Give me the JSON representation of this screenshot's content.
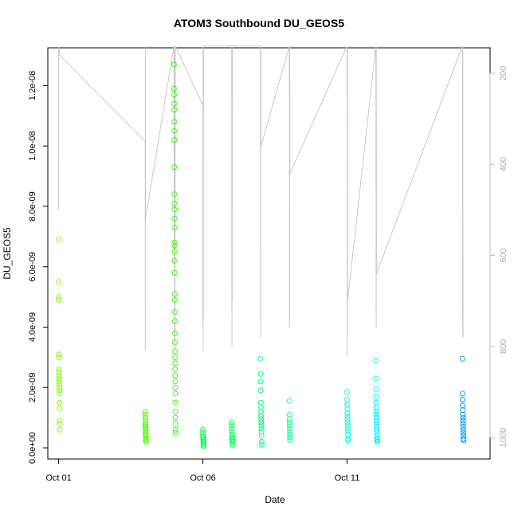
{
  "chart_data": {
    "type": "scatter",
    "title": "ATOM3 Southbound DU_GEOS5",
    "xlabel": "Date",
    "ylabel": "DU_GEOS5",
    "xlim": [
      "2016-09-30T15:00",
      "2016-10-15T23:00"
    ],
    "ylim": [
      0,
      1.32e-08
    ],
    "x_ticks": [
      {
        "date": "2016-10-01",
        "label": "Oct 01"
      },
      {
        "date": "2016-10-06",
        "label": "Oct 06"
      },
      {
        "date": "2016-10-11",
        "label": "Oct 11"
      }
    ],
    "y_ticks": [
      {
        "value": 0,
        "label": "0.0e+00"
      },
      {
        "value": 2e-09,
        "label": "2.0e-09"
      },
      {
        "value": 4e-09,
        "label": "4.0e-09"
      },
      {
        "value": 6e-09,
        "label": "6.0e-09"
      },
      {
        "value": 8e-09,
        "label": "8.0e-09"
      },
      {
        "value": 1e-08,
        "label": "1.0e-08"
      },
      {
        "value": 1.2e-08,
        "label": "1.2e-08"
      }
    ],
    "secondary_axis": {
      "side": "right",
      "reversed": true,
      "range": [
        1050,
        140
      ],
      "ticks": [
        {
          "value": 200,
          "label": "200"
        },
        {
          "value": 400,
          "label": "400"
        },
        {
          "value": 600,
          "label": "600"
        },
        {
          "value": 800,
          "label": "800"
        },
        {
          "value": 1000,
          "label": "1000"
        }
      ],
      "color": "#bbbbbb"
    },
    "series": [
      {
        "color": "#7fff00",
        "points": [
          [
            "2016-10-01T00:00",
            6.9e-09
          ],
          [
            "2016-10-01T00:05",
            5.5e-09
          ],
          [
            "2016-10-01T00:10",
            5e-09
          ],
          [
            "2016-10-01T00:12",
            4.9e-09
          ],
          [
            "2016-10-01T00:15",
            3.1e-09
          ],
          [
            "2016-10-01T00:18",
            3e-09
          ],
          [
            "2016-10-01T00:20",
            2.6e-09
          ],
          [
            "2016-10-01T00:22",
            2.5e-09
          ],
          [
            "2016-10-01T00:25",
            2.4e-09
          ],
          [
            "2016-10-01T00:28",
            2.3e-09
          ],
          [
            "2016-10-01T00:30",
            2.2e-09
          ],
          [
            "2016-10-01T00:32",
            2.1e-09
          ],
          [
            "2016-10-01T00:35",
            2e-09
          ],
          [
            "2016-10-01T00:38",
            1.9e-09
          ],
          [
            "2016-10-01T00:40",
            1.8e-09
          ],
          [
            "2016-10-01T00:42",
            1.5e-09
          ],
          [
            "2016-10-01T00:45",
            1.3e-09
          ],
          [
            "2016-10-01T00:48",
            9e-10
          ],
          [
            "2016-10-01T00:50",
            8e-10
          ],
          [
            "2016-10-01T00:52",
            6e-10
          ]
        ]
      },
      {
        "color": "#4cff00",
        "points": [
          [
            "2016-10-04T00:00",
            1.2e-09
          ],
          [
            "2016-10-04T00:03",
            1.1e-09
          ],
          [
            "2016-10-04T00:06",
            1e-09
          ],
          [
            "2016-10-04T00:09",
            9e-10
          ],
          [
            "2016-10-04T00:12",
            8e-10
          ],
          [
            "2016-10-04T00:15",
            7.5e-10
          ],
          [
            "2016-10-04T00:18",
            7e-10
          ],
          [
            "2016-10-04T00:21",
            6.5e-10
          ],
          [
            "2016-10-04T00:24",
            6e-10
          ],
          [
            "2016-10-04T00:27",
            5e-10
          ],
          [
            "2016-10-04T00:30",
            4.5e-10
          ],
          [
            "2016-10-04T00:33",
            4e-10
          ],
          [
            "2016-10-04T00:36",
            3e-10
          ],
          [
            "2016-10-04T00:39",
            2.5e-10
          ],
          [
            "2016-10-04T00:42",
            2e-10
          ]
        ]
      },
      {
        "color": "#33ff00",
        "points": [
          [
            "2016-10-05T00:00",
            1.27e-08
          ],
          [
            "2016-10-05T00:02",
            1.19e-08
          ],
          [
            "2016-10-05T00:04",
            1.17e-08
          ],
          [
            "2016-10-05T00:06",
            1.14e-08
          ],
          [
            "2016-10-05T00:08",
            1.12e-08
          ],
          [
            "2016-10-05T00:10",
            1.08e-08
          ],
          [
            "2016-10-05T00:12",
            1.05e-08
          ],
          [
            "2016-10-05T00:14",
            1.02e-08
          ],
          [
            "2016-10-05T00:16",
            9.3e-09
          ],
          [
            "2016-10-05T00:18",
            8.4e-09
          ],
          [
            "2016-10-05T00:20",
            8.1e-09
          ],
          [
            "2016-10-05T00:22",
            7.9e-09
          ],
          [
            "2016-10-05T00:24",
            7.6e-09
          ],
          [
            "2016-10-05T00:26",
            7.3e-09
          ],
          [
            "2016-10-05T00:28",
            6.8e-09
          ],
          [
            "2016-10-05T00:30",
            6.7e-09
          ],
          [
            "2016-10-05T00:32",
            6.5e-09
          ],
          [
            "2016-10-05T00:34",
            6.2e-09
          ],
          [
            "2016-10-05T00:36",
            5.8e-09
          ],
          [
            "2016-10-05T00:38",
            5.1e-09
          ],
          [
            "2016-10-05T00:40",
            4.9e-09
          ],
          [
            "2016-10-05T00:42",
            4.5e-09
          ],
          [
            "2016-10-05T00:44",
            4.2e-09
          ],
          [
            "2016-10-05T00:46",
            3.8e-09
          ],
          [
            "2016-10-05T00:48",
            3.5e-09
          ],
          [
            "2016-10-05T00:50",
            3.2e-09
          ],
          [
            "2016-10-05T00:52",
            3e-09
          ],
          [
            "2016-10-05T00:54",
            2.8e-09
          ],
          [
            "2016-10-05T00:56",
            2.6e-09
          ],
          [
            "2016-10-05T00:58",
            2.4e-09
          ],
          [
            "2016-10-05T01:00",
            2.2e-09
          ],
          [
            "2016-10-05T01:02",
            2e-09
          ],
          [
            "2016-10-05T01:04",
            1.8e-09
          ],
          [
            "2016-10-05T01:06",
            1.5e-09
          ],
          [
            "2016-10-05T01:08",
            1.2e-09
          ],
          [
            "2016-10-05T01:10",
            1e-09
          ],
          [
            "2016-10-05T01:12",
            8e-10
          ],
          [
            "2016-10-05T01:14",
            6e-10
          ],
          [
            "2016-10-05T01:16",
            5e-10
          ]
        ]
      },
      {
        "color": "#00ff40",
        "points": [
          [
            "2016-10-06T00:00",
            6e-10
          ],
          [
            "2016-10-06T00:04",
            5e-10
          ],
          [
            "2016-10-06T00:08",
            4e-10
          ],
          [
            "2016-10-06T00:12",
            3.5e-10
          ],
          [
            "2016-10-06T00:16",
            3e-10
          ],
          [
            "2016-10-06T00:20",
            2.5e-10
          ],
          [
            "2016-10-06T00:24",
            2e-10
          ],
          [
            "2016-10-06T00:28",
            1.5e-10
          ],
          [
            "2016-10-06T00:32",
            1e-10
          ],
          [
            "2016-10-06T00:36",
            5e-11
          ]
        ]
      },
      {
        "color": "#00ff50",
        "points": [
          [
            "2016-10-07T00:00",
            8.5e-10
          ],
          [
            "2016-10-07T00:04",
            7.5e-10
          ],
          [
            "2016-10-07T00:08",
            6.5e-10
          ],
          [
            "2016-10-07T00:12",
            5.5e-10
          ],
          [
            "2016-10-07T00:16",
            4.5e-10
          ],
          [
            "2016-10-07T00:20",
            3.5e-10
          ],
          [
            "2016-10-07T00:24",
            3e-10
          ],
          [
            "2016-10-07T00:28",
            2.5e-10
          ],
          [
            "2016-10-07T00:32",
            2e-10
          ],
          [
            "2016-10-07T00:36",
            1e-10
          ]
        ]
      },
      {
        "color": "#00ff80",
        "points": [
          [
            "2016-10-08T00:00",
            2.95e-09
          ],
          [
            "2016-10-08T00:04",
            2.45e-09
          ],
          [
            "2016-10-08T00:08",
            2.2e-09
          ],
          [
            "2016-10-08T00:12",
            1.9e-09
          ],
          [
            "2016-10-08T00:16",
            1.5e-09
          ],
          [
            "2016-10-08T00:20",
            1.35e-09
          ],
          [
            "2016-10-08T00:24",
            1.2e-09
          ],
          [
            "2016-10-08T00:28",
            1.05e-09
          ],
          [
            "2016-10-08T00:32",
            9.5e-10
          ],
          [
            "2016-10-08T00:36",
            8.5e-10
          ],
          [
            "2016-10-08T00:40",
            7.5e-10
          ],
          [
            "2016-10-08T00:44",
            6.5e-10
          ],
          [
            "2016-10-08T00:48",
            5.5e-10
          ],
          [
            "2016-10-08T00:52",
            4e-10
          ],
          [
            "2016-10-08T00:56",
            2e-10
          ],
          [
            "2016-10-08T01:00",
            1e-10
          ]
        ]
      },
      {
        "color": "#00ff9a",
        "points": [
          [
            "2016-10-09T00:00",
            1.55e-09
          ],
          [
            "2016-10-09T00:04",
            1.1e-09
          ],
          [
            "2016-10-09T00:08",
            9.5e-10
          ],
          [
            "2016-10-09T00:12",
            8.5e-10
          ],
          [
            "2016-10-09T00:16",
            7.5e-10
          ],
          [
            "2016-10-09T00:20",
            6.5e-10
          ],
          [
            "2016-10-09T00:24",
            5.5e-10
          ],
          [
            "2016-10-09T00:28",
            4.5e-10
          ],
          [
            "2016-10-09T00:32",
            3.5e-10
          ],
          [
            "2016-10-09T00:36",
            2.5e-10
          ]
        ]
      },
      {
        "color": "#00ffe0",
        "points": [
          [
            "2016-10-11T00:00",
            1.85e-09
          ],
          [
            "2016-10-11T00:04",
            1.6e-09
          ],
          [
            "2016-10-11T00:08",
            1.45e-09
          ],
          [
            "2016-10-11T00:12",
            1.3e-09
          ],
          [
            "2016-10-11T00:16",
            1.15e-09
          ],
          [
            "2016-10-11T00:20",
            1.05e-09
          ],
          [
            "2016-10-11T00:24",
            9.5e-10
          ],
          [
            "2016-10-11T00:28",
            8.5e-10
          ],
          [
            "2016-10-11T00:32",
            7.5e-10
          ],
          [
            "2016-10-11T00:36",
            6.5e-10
          ],
          [
            "2016-10-11T00:40",
            5.5e-10
          ],
          [
            "2016-10-11T00:44",
            4.5e-10
          ],
          [
            "2016-10-11T00:48",
            3e-10
          ],
          [
            "2016-10-11T00:52",
            2.5e-10
          ]
        ]
      },
      {
        "color": "#00f0ff",
        "points": [
          [
            "2016-10-12T00:00",
            2.9e-09
          ],
          [
            "2016-10-12T00:04",
            2.3e-09
          ],
          [
            "2016-10-12T00:08",
            1.95e-09
          ],
          [
            "2016-10-12T00:12",
            1.7e-09
          ],
          [
            "2016-10-12T00:16",
            1.5e-09
          ],
          [
            "2016-10-12T00:20",
            1.35e-09
          ],
          [
            "2016-10-12T00:24",
            1.2e-09
          ],
          [
            "2016-10-12T00:28",
            1.1e-09
          ],
          [
            "2016-10-12T00:32",
            1e-09
          ],
          [
            "2016-10-12T00:36",
            9e-10
          ],
          [
            "2016-10-12T00:40",
            8e-10
          ],
          [
            "2016-10-12T00:44",
            7e-10
          ],
          [
            "2016-10-12T00:48",
            6e-10
          ],
          [
            "2016-10-12T00:52",
            5e-10
          ],
          [
            "2016-10-12T00:56",
            4e-10
          ],
          [
            "2016-10-12T01:00",
            3e-10
          ],
          [
            "2016-10-12T01:04",
            2.5e-10
          ],
          [
            "2016-10-12T01:08",
            2e-10
          ]
        ]
      },
      {
        "color": "#0099ff",
        "points": [
          [
            "2016-10-15T00:00",
            2.95e-09
          ],
          [
            "2016-10-15T00:04",
            1.8e-09
          ],
          [
            "2016-10-15T00:08",
            1.6e-09
          ],
          [
            "2016-10-15T00:12",
            1.4e-09
          ],
          [
            "2016-10-15T00:16",
            1.25e-09
          ],
          [
            "2016-10-15T00:20",
            1.1e-09
          ],
          [
            "2016-10-15T00:24",
            1e-09
          ],
          [
            "2016-10-15T00:28",
            9e-10
          ],
          [
            "2016-10-15T00:32",
            8e-10
          ],
          [
            "2016-10-15T00:36",
            7e-10
          ],
          [
            "2016-10-15T00:40",
            6e-10
          ],
          [
            "2016-10-15T00:44",
            5e-10
          ],
          [
            "2016-10-15T00:48",
            4e-10
          ],
          [
            "2016-10-15T00:52",
            3e-10
          ],
          [
            "2016-10-15T00:56",
            2.5e-10
          ]
        ]
      }
    ],
    "pressure_trace": {
      "color": "#c8c8c8",
      "axis": "secondary",
      "points": [
        [
          "2016-10-01T00:00",
          140
        ],
        [
          "2016-10-01T00:02",
          500
        ],
        [
          "2016-10-01T00:04",
          140
        ],
        [
          "2016-10-01T00:06",
          380
        ],
        [
          "2016-10-01T00:08",
          140
        ],
        [
          "2016-10-01T01:00",
          160
        ],
        [
          "2016-10-04T00:00",
          350
        ],
        [
          "2016-10-04T00:05",
          810
        ],
        [
          "2016-10-04T00:10",
          140
        ],
        [
          "2016-10-04T00:15",
          520
        ],
        [
          "2016-10-05T00:00",
          140
        ],
        [
          "2016-10-05T00:10",
          620
        ],
        [
          "2016-10-05T00:20",
          140
        ],
        [
          "2016-10-05T00:30",
          810
        ],
        [
          "2016-10-05T00:40",
          140
        ],
        [
          "2016-10-05T00:50",
          790
        ],
        [
          "2016-10-05T01:00",
          140
        ],
        [
          "2016-10-06T00:00",
          270
        ],
        [
          "2016-10-06T00:05",
          760
        ],
        [
          "2016-10-06T00:10",
          140
        ],
        [
          "2016-10-06T00:15",
          810
        ],
        [
          "2016-10-06T00:20",
          140
        ],
        [
          "2016-10-06T00:25",
          740
        ],
        [
          "2016-10-06T00:30",
          140
        ],
        [
          "2016-10-07T00:00",
          140
        ],
        [
          "2016-10-07T00:05",
          730
        ],
        [
          "2016-10-07T00:10",
          140
        ],
        [
          "2016-10-07T00:15",
          800
        ],
        [
          "2016-10-07T00:20",
          140
        ],
        [
          "2016-10-07T00:25",
          700
        ],
        [
          "2016-10-07T00:30",
          140
        ],
        [
          "2016-10-08T00:00",
          140
        ],
        [
          "2016-10-08T00:05",
          780
        ],
        [
          "2016-10-08T00:10",
          140
        ],
        [
          "2016-10-08T00:15",
          750
        ],
        [
          "2016-10-08T00:20",
          140
        ],
        [
          "2016-10-08T00:25",
          360
        ],
        [
          "2016-10-09T00:00",
          140
        ],
        [
          "2016-10-09T00:05",
          760
        ],
        [
          "2016-10-09T00:10",
          140
        ],
        [
          "2016-10-09T00:15",
          740
        ],
        [
          "2016-10-09T00:20",
          140
        ],
        [
          "2016-10-09T00:25",
          420
        ],
        [
          "2016-10-11T00:00",
          140
        ],
        [
          "2016-10-11T00:05",
          780
        ],
        [
          "2016-10-11T00:10",
          140
        ],
        [
          "2016-10-11T00:15",
          820
        ],
        [
          "2016-10-11T00:20",
          140
        ],
        [
          "2016-10-11T00:25",
          700
        ],
        [
          "2016-10-12T00:00",
          140
        ],
        [
          "2016-10-12T00:05",
          720
        ],
        [
          "2016-10-12T00:10",
          140
        ],
        [
          "2016-10-12T00:15",
          760
        ],
        [
          "2016-10-12T00:20",
          140
        ],
        [
          "2016-10-12T00:25",
          640
        ],
        [
          "2016-10-15T00:00",
          140
        ],
        [
          "2016-10-15T00:05",
          740
        ],
        [
          "2016-10-15T00:10",
          140
        ],
        [
          "2016-10-15T00:15",
          780
        ],
        [
          "2016-10-15T00:20",
          140
        ],
        [
          "2016-10-15T00:25",
          520
        ],
        [
          "2016-10-15T00:30",
          780
        ]
      ]
    },
    "grid": false,
    "legend": "none"
  }
}
